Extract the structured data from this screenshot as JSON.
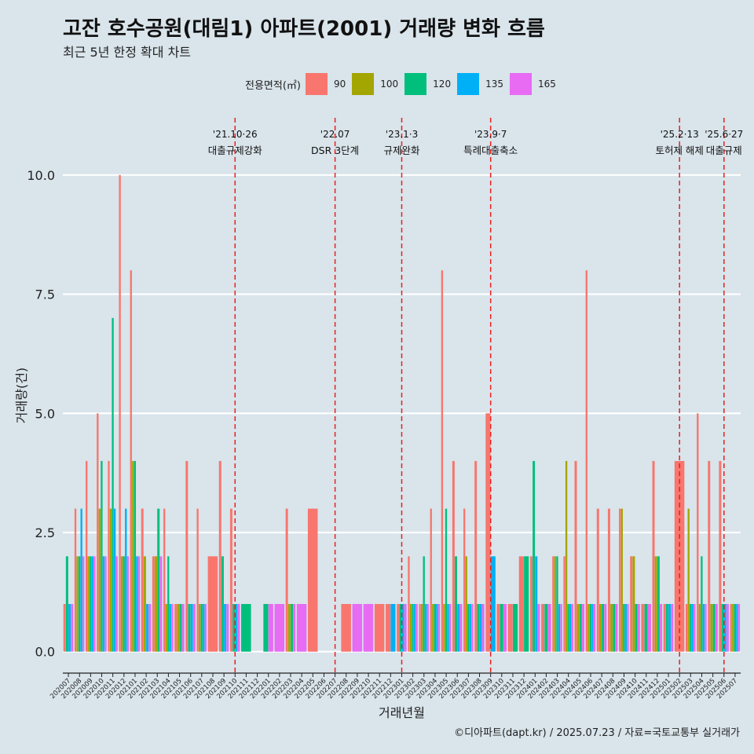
{
  "header": {
    "title": "고잔 호수공원(대림1) 아파트(2001) 거래량 변화 흐름",
    "subtitle": "최근 5년 한정 확대 차트"
  },
  "legend": {
    "title": "전용면적(㎡)",
    "items": [
      {
        "label": "90",
        "color": "#f8766d"
      },
      {
        "label": "100",
        "color": "#a3a500"
      },
      {
        "label": "120",
        "color": "#00bf7d"
      },
      {
        "label": "135",
        "color": "#00b0f6"
      },
      {
        "label": "165",
        "color": "#e76bf3"
      }
    ]
  },
  "caption": "©디아파트(dapt.kr) / 2025.07.23 / 자료=국토교통부 실거래가",
  "chart_data": {
    "type": "bar",
    "title": "고잔 호수공원(대림1) 아파트(2001) 거래량 변화 흐름",
    "xlabel": "거래년월",
    "ylabel": "거래량(건)",
    "ylim": [
      -0.45,
      11.2
    ],
    "yticks": [
      "0.0",
      "2.5",
      "5.0",
      "7.5",
      "10.0"
    ],
    "ytick_values": [
      0,
      2.5,
      5,
      7.5,
      10
    ],
    "categories": [
      "202007",
      "202008",
      "202009",
      "202010",
      "202011",
      "202012",
      "202101",
      "202102",
      "202103",
      "202104",
      "202105",
      "202106",
      "202107",
      "202108",
      "202109",
      "202110",
      "202111",
      "202112",
      "202201",
      "202202",
      "202203",
      "202204",
      "202205",
      "202206",
      "202207",
      "202208",
      "202209",
      "202210",
      "202211",
      "202212",
      "202301",
      "202302",
      "202303",
      "202304",
      "202305",
      "202306",
      "202307",
      "202308",
      "202309",
      "202310",
      "202311",
      "202312",
      "202401",
      "202402",
      "202403",
      "202404",
      "202405",
      "202406",
      "202407",
      "202408",
      "202409",
      "202410",
      "202411",
      "202412",
      "202501",
      "202502",
      "202503",
      "202504",
      "202505",
      "202506",
      "202507"
    ],
    "series": [
      {
        "name": "90",
        "color": "#f8766d",
        "values": [
          1,
          3,
          4,
          5,
          4,
          10,
          8,
          3,
          2,
          3,
          1,
          4,
          3,
          2,
          4,
          3,
          null,
          null,
          null,
          null,
          3,
          null,
          3,
          null,
          null,
          1,
          null,
          null,
          1,
          1,
          1,
          2,
          1,
          3,
          8,
          4,
          3,
          4,
          5,
          1,
          1,
          2,
          2,
          1,
          2,
          2,
          4,
          8,
          3,
          3,
          3,
          2,
          1,
          4,
          1,
          4,
          1,
          5,
          4,
          4,
          1
        ]
      },
      {
        "name": "100",
        "color": "#a3a500",
        "values": [
          null,
          2,
          2,
          3,
          3,
          2,
          4,
          2,
          2,
          1,
          1,
          null,
          1,
          null,
          null,
          null,
          null,
          null,
          null,
          null,
          1,
          null,
          null,
          null,
          null,
          null,
          null,
          null,
          null,
          null,
          null,
          1,
          1,
          1,
          1,
          null,
          2,
          null,
          null,
          null,
          null,
          null,
          null,
          null,
          2,
          4,
          1,
          1,
          1,
          1,
          3,
          2,
          null,
          2,
          null,
          null,
          3,
          1,
          1,
          null,
          1
        ]
      },
      {
        "name": "120",
        "color": "#00bf7d",
        "values": [
          2,
          2,
          2,
          4,
          7,
          2,
          4,
          null,
          3,
          2,
          1,
          1,
          1,
          null,
          2,
          1,
          1,
          null,
          1,
          null,
          1,
          null,
          null,
          null,
          null,
          null,
          null,
          null,
          null,
          null,
          1,
          1,
          2,
          1,
          3,
          2,
          1,
          1,
          null,
          1,
          1,
          2,
          4,
          1,
          2,
          1,
          1,
          1,
          1,
          1,
          1,
          1,
          1,
          2,
          1,
          null,
          1,
          2,
          1,
          1,
          1
        ]
      },
      {
        "name": "135",
        "color": "#00b0f6",
        "values": [
          1,
          3,
          2,
          2,
          3,
          3,
          2,
          1,
          null,
          1,
          null,
          1,
          1,
          null,
          1,
          1,
          null,
          null,
          null,
          null,
          null,
          null,
          null,
          null,
          null,
          null,
          null,
          null,
          null,
          1,
          1,
          1,
          1,
          1,
          1,
          1,
          1,
          1,
          2,
          null,
          null,
          null,
          2,
          null,
          1,
          1,
          null,
          1,
          null,
          null,
          1,
          null,
          null,
          null,
          1,
          null,
          1,
          1,
          null,
          1,
          1
        ]
      },
      {
        "name": "165",
        "color": "#e76bf3",
        "values": [
          1,
          2,
          2,
          2,
          2,
          2,
          2,
          1,
          2,
          1,
          1,
          1,
          1,
          null,
          1,
          1,
          null,
          null,
          1,
          1,
          1,
          1,
          null,
          null,
          null,
          null,
          1,
          1,
          null,
          null,
          1,
          1,
          1,
          1,
          1,
          1,
          1,
          1,
          null,
          1,
          null,
          null,
          1,
          1,
          1,
          1,
          1,
          1,
          1,
          1,
          1,
          1,
          1,
          1,
          1,
          null,
          1,
          1,
          1,
          1,
          1
        ]
      }
    ],
    "annotations": [
      {
        "category": "202110",
        "date": "'21.10·26",
        "label": "대출규제강화"
      },
      {
        "category": "202207",
        "date": "'22.07",
        "label": "DSR 3단계"
      },
      {
        "category": "202301",
        "date": "'23.1·3",
        "label": "규제완화"
      },
      {
        "category": "202309",
        "date": "'23.9·7",
        "label": "특례대출축소"
      },
      {
        "category": "202502",
        "date": "'25.2·13",
        "label": "토허제 해제"
      },
      {
        "category": "202506",
        "date": "'25.6·27",
        "label": "대출규제"
      }
    ]
  }
}
